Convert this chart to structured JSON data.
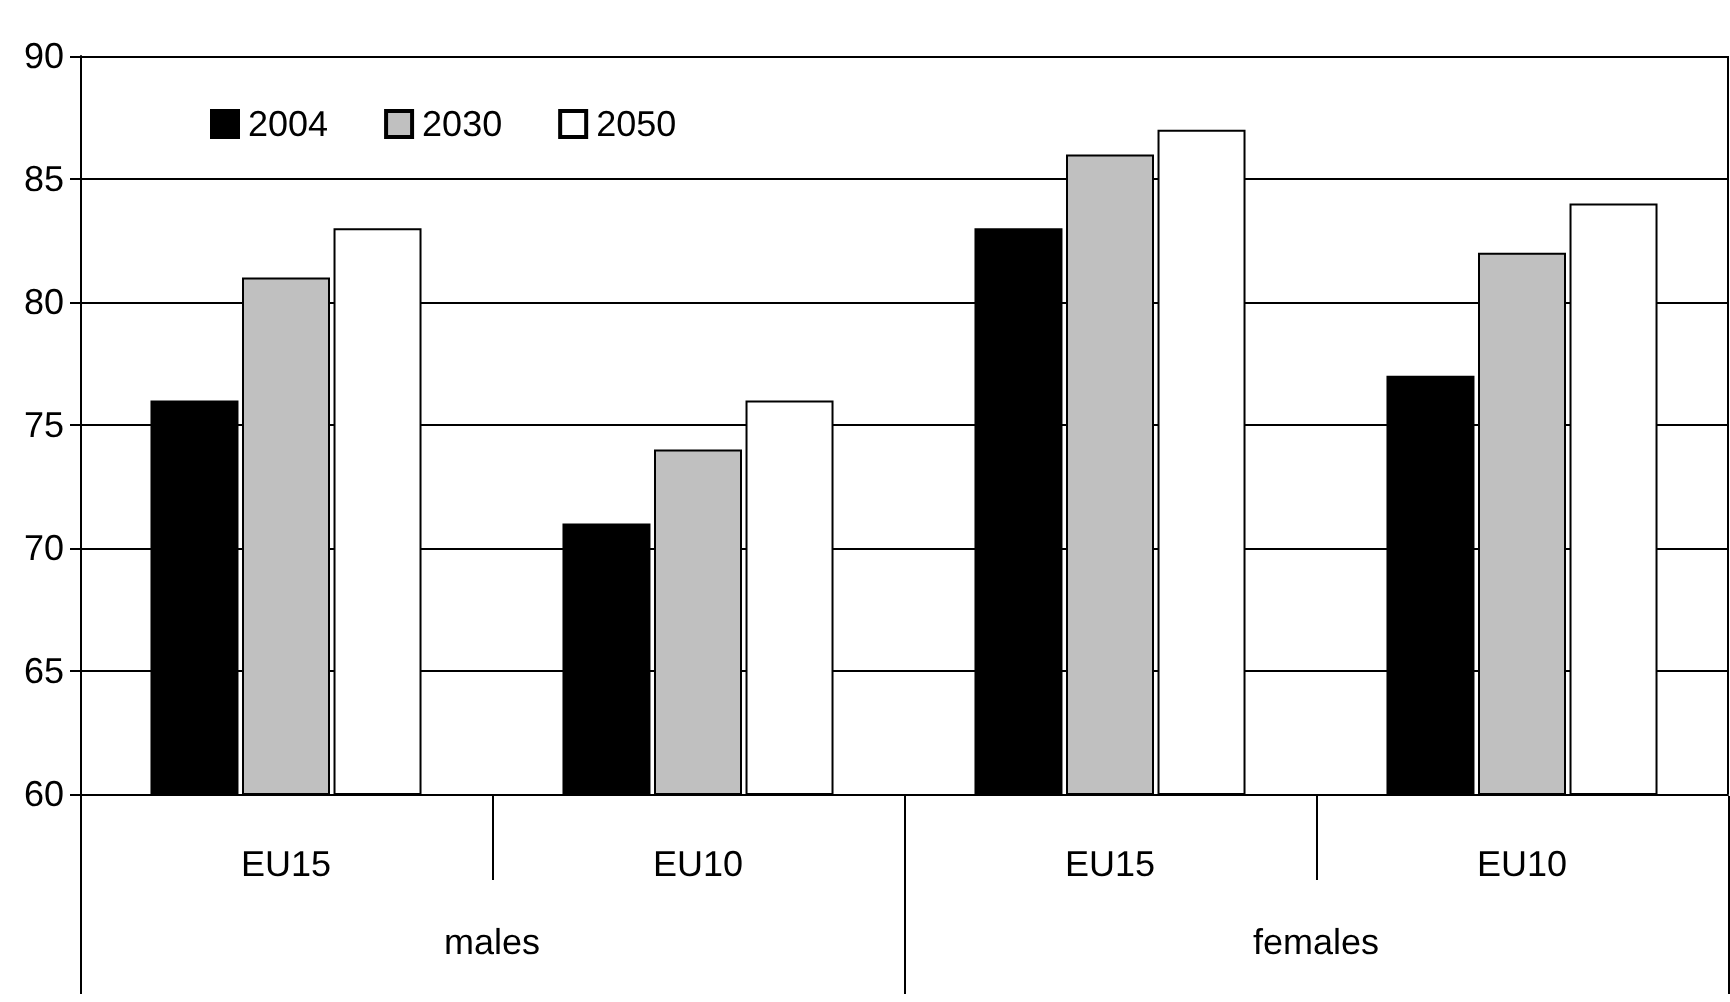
{
  "chart_data": {
    "type": "bar",
    "categories": [
      "EU15",
      "EU10",
      "EU15",
      "EU10"
    ],
    "series": [
      {
        "name": "2004",
        "color": "#000000",
        "values": [
          76,
          71,
          83,
          77
        ]
      },
      {
        "name": "2030",
        "color": "#c0c0c0",
        "values": [
          81,
          74,
          86,
          82
        ]
      },
      {
        "name": "2050",
        "color": "#ffffff",
        "values": [
          83,
          76,
          87,
          84
        ]
      }
    ],
    "annotations": [
      "males",
      "females"
    ],
    "ylim": [
      60,
      90
    ],
    "yticks": [
      60,
      65,
      70,
      75,
      80,
      85,
      90
    ],
    "grid": true,
    "legend": "top left"
  }
}
